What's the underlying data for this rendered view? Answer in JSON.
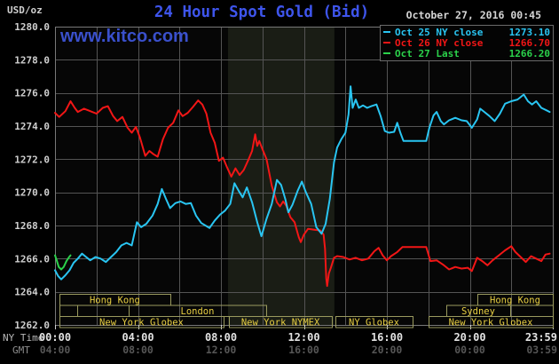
{
  "header": {
    "unit_label": "USD/oz",
    "title": "24 Hour Spot Gold (Bid)",
    "datetime": "October 27, 2016 00:45",
    "watermark": "www.kitco.com"
  },
  "legend": {
    "items": [
      {
        "label": "Oct 25 NY close",
        "value": "1273.10",
        "color": "#29c5f2"
      },
      {
        "label": "Oct 26 NY close",
        "value": "1266.70",
        "color": "#f21616"
      },
      {
        "label": "Oct 27 Last",
        "value": "1266.20",
        "color": "#2bd24b"
      }
    ]
  },
  "axes": {
    "ny_time_label": "NY Time",
    "gmt_label": "GMT",
    "y_tick_labels": [
      "1280.0",
      "1278.0",
      "1276.0",
      "1274.0",
      "1272.0",
      "1270.0",
      "1268.0",
      "1266.0",
      "1264.0",
      "1262.0"
    ],
    "x_tick_hours": [
      0,
      4,
      8,
      12,
      16,
      20,
      23.983
    ],
    "x_tick_labels_ny": [
      "00:00",
      "04:00",
      "08:00",
      "12:00",
      "16:00",
      "20:00",
      "23:59"
    ],
    "x_tick_labels_gmt": [
      "04:00",
      "08:00",
      "12:00",
      "16:00",
      "20:00",
      "00:00",
      "03:59"
    ]
  },
  "sessions": {
    "box_border_color": "#9a9a5e",
    "text_color": "#e8cf42",
    "rows": [
      {
        "boxes": [
          {
            "from": 0.21,
            "to": 5.56,
            "label": "Hong Kong"
          },
          {
            "from": 20.36,
            "to": 24,
            "label": "Hong Kong"
          }
        ]
      },
      {
        "boxes": [
          {
            "from": 0.21,
            "to": 1.07,
            "label": ""
          },
          {
            "from": 1.07,
            "to": 3.55,
            "label": ""
          },
          {
            "from": 3.55,
            "to": 10.18,
            "label": "London"
          },
          {
            "from": 18.86,
            "to": 21.95,
            "label": "Sydney"
          },
          {
            "from": 21.95,
            "to": 24,
            "label": ""
          }
        ]
      },
      {
        "boxes": [
          {
            "from": 0.21,
            "to": 8.13,
            "label": "New York Globex"
          },
          {
            "from": 8.39,
            "to": 13.35,
            "label": "New York NYMEX"
          },
          {
            "from": 13.52,
            "to": 17.24,
            "label": "NY Globex"
          },
          {
            "from": 18.01,
            "to": 24,
            "label": "New York Globex"
          }
        ]
      }
    ]
  },
  "chart_data": {
    "type": "line",
    "title": "24 Hour Spot Gold (Bid)",
    "xlabel": "NY Time (hours, 00:00 - 23:59)",
    "ylabel": "USD/oz",
    "xlim": [
      0,
      24
    ],
    "ylim": [
      1262,
      1280
    ],
    "y_tick_step": 2,
    "x_grid_step_hours": 2,
    "grid": true,
    "plot_bg_color": "#060606",
    "grid_color": "#545454",
    "border_color": "#787878",
    "nymex_band_hours": [
      8.34,
      13.47
    ],
    "nymex_band_color": "#1a1d15",
    "legend_position": "top-right",
    "series": [
      {
        "name": "Oct 26 NY close 1266.70",
        "color": "#f21616",
        "points": [
          [
            0.0,
            1274.8
          ],
          [
            0.2,
            1274.55
          ],
          [
            0.5,
            1274.9
          ],
          [
            0.75,
            1275.5
          ],
          [
            0.95,
            1275.1
          ],
          [
            1.1,
            1274.85
          ],
          [
            1.4,
            1275.05
          ],
          [
            1.7,
            1274.9
          ],
          [
            2.0,
            1274.75
          ],
          [
            2.3,
            1275.1
          ],
          [
            2.55,
            1275.2
          ],
          [
            2.8,
            1274.6
          ],
          [
            3.0,
            1274.3
          ],
          [
            3.25,
            1274.55
          ],
          [
            3.5,
            1273.9
          ],
          [
            3.7,
            1273.6
          ],
          [
            3.9,
            1273.95
          ],
          [
            4.1,
            1273.3
          ],
          [
            4.35,
            1272.2
          ],
          [
            4.55,
            1272.5
          ],
          [
            4.75,
            1272.3
          ],
          [
            4.95,
            1272.15
          ],
          [
            5.2,
            1273.2
          ],
          [
            5.45,
            1273.9
          ],
          [
            5.7,
            1274.2
          ],
          [
            5.95,
            1274.95
          ],
          [
            6.15,
            1274.6
          ],
          [
            6.4,
            1274.8
          ],
          [
            6.65,
            1275.15
          ],
          [
            6.9,
            1275.55
          ],
          [
            7.1,
            1275.3
          ],
          [
            7.3,
            1274.75
          ],
          [
            7.5,
            1273.6
          ],
          [
            7.7,
            1273.0
          ],
          [
            7.9,
            1271.9
          ],
          [
            8.1,
            1272.1
          ],
          [
            8.3,
            1271.5
          ],
          [
            8.5,
            1270.95
          ],
          [
            8.7,
            1271.45
          ],
          [
            8.9,
            1271.05
          ],
          [
            9.1,
            1271.35
          ],
          [
            9.3,
            1271.9
          ],
          [
            9.5,
            1272.5
          ],
          [
            9.65,
            1273.5
          ],
          [
            9.75,
            1272.8
          ],
          [
            9.85,
            1273.1
          ],
          [
            10.0,
            1272.6
          ],
          [
            10.2,
            1272.0
          ],
          [
            10.45,
            1270.4
          ],
          [
            10.7,
            1269.4
          ],
          [
            10.85,
            1269.15
          ],
          [
            11.0,
            1269.45
          ],
          [
            11.15,
            1269.2
          ],
          [
            11.35,
            1268.5
          ],
          [
            11.55,
            1268.2
          ],
          [
            11.75,
            1267.3
          ],
          [
            11.85,
            1267.0
          ],
          [
            12.0,
            1267.45
          ],
          [
            12.2,
            1267.8
          ],
          [
            12.5,
            1267.75
          ],
          [
            12.8,
            1267.7
          ],
          [
            12.95,
            1267.45
          ],
          [
            13.02,
            1266.6
          ],
          [
            13.08,
            1264.8
          ],
          [
            13.12,
            1264.35
          ],
          [
            13.2,
            1265.1
          ],
          [
            13.3,
            1265.45
          ],
          [
            13.45,
            1266.05
          ],
          [
            13.6,
            1266.15
          ],
          [
            13.9,
            1266.1
          ],
          [
            14.2,
            1265.95
          ],
          [
            14.5,
            1266.05
          ],
          [
            14.8,
            1265.9
          ],
          [
            15.1,
            1266.0
          ],
          [
            15.4,
            1266.45
          ],
          [
            15.6,
            1266.65
          ],
          [
            15.8,
            1266.2
          ],
          [
            16.0,
            1265.9
          ],
          [
            16.2,
            1266.15
          ],
          [
            16.5,
            1266.4
          ],
          [
            16.75,
            1266.7
          ],
          [
            17.9,
            1266.7
          ],
          [
            18.1,
            1265.85
          ],
          [
            18.4,
            1265.9
          ],
          [
            18.7,
            1265.65
          ],
          [
            19.0,
            1265.35
          ],
          [
            19.3,
            1265.5
          ],
          [
            19.6,
            1265.4
          ],
          [
            19.9,
            1265.45
          ],
          [
            20.1,
            1265.25
          ],
          [
            20.35,
            1266.05
          ],
          [
            20.6,
            1265.85
          ],
          [
            20.85,
            1265.6
          ],
          [
            21.1,
            1265.9
          ],
          [
            21.4,
            1266.2
          ],
          [
            21.7,
            1266.5
          ],
          [
            22.0,
            1266.75
          ],
          [
            22.2,
            1266.4
          ],
          [
            22.45,
            1266.1
          ],
          [
            22.7,
            1265.8
          ],
          [
            22.95,
            1266.15
          ],
          [
            23.2,
            1266.0
          ],
          [
            23.45,
            1265.85
          ],
          [
            23.65,
            1266.25
          ],
          [
            23.85,
            1266.3
          ]
        ]
      },
      {
        "name": "Oct 25 NY close 1273.10",
        "color": "#29c5f2",
        "points": [
          [
            0.0,
            1265.3
          ],
          [
            0.15,
            1264.95
          ],
          [
            0.3,
            1264.75
          ],
          [
            0.5,
            1265.0
          ],
          [
            0.7,
            1265.3
          ],
          [
            0.9,
            1265.75
          ],
          [
            1.1,
            1266.0
          ],
          [
            1.3,
            1266.3
          ],
          [
            1.5,
            1266.1
          ],
          [
            1.7,
            1265.9
          ],
          [
            1.95,
            1266.1
          ],
          [
            2.2,
            1266.0
          ],
          [
            2.45,
            1265.8
          ],
          [
            2.7,
            1266.1
          ],
          [
            2.95,
            1266.4
          ],
          [
            3.2,
            1266.8
          ],
          [
            3.45,
            1266.95
          ],
          [
            3.7,
            1266.8
          ],
          [
            3.95,
            1268.2
          ],
          [
            4.15,
            1267.9
          ],
          [
            4.4,
            1268.1
          ],
          [
            4.7,
            1268.6
          ],
          [
            4.95,
            1269.3
          ],
          [
            5.15,
            1270.2
          ],
          [
            5.35,
            1269.6
          ],
          [
            5.55,
            1269.05
          ],
          [
            5.8,
            1269.35
          ],
          [
            6.05,
            1269.45
          ],
          [
            6.3,
            1269.3
          ],
          [
            6.55,
            1269.35
          ],
          [
            6.8,
            1268.6
          ],
          [
            7.05,
            1268.15
          ],
          [
            7.25,
            1268.0
          ],
          [
            7.45,
            1267.85
          ],
          [
            7.7,
            1268.3
          ],
          [
            7.95,
            1268.65
          ],
          [
            8.2,
            1268.9
          ],
          [
            8.45,
            1269.3
          ],
          [
            8.65,
            1270.55
          ],
          [
            8.85,
            1270.1
          ],
          [
            9.05,
            1269.7
          ],
          [
            9.25,
            1270.3
          ],
          [
            9.5,
            1269.4
          ],
          [
            9.75,
            1268.2
          ],
          [
            9.95,
            1267.35
          ],
          [
            10.2,
            1268.4
          ],
          [
            10.45,
            1269.3
          ],
          [
            10.7,
            1270.75
          ],
          [
            10.9,
            1270.45
          ],
          [
            11.1,
            1269.6
          ],
          [
            11.25,
            1268.8
          ],
          [
            11.45,
            1269.25
          ],
          [
            11.7,
            1270.1
          ],
          [
            11.9,
            1270.65
          ],
          [
            12.1,
            1270.0
          ],
          [
            12.35,
            1269.3
          ],
          [
            12.6,
            1267.9
          ],
          [
            12.85,
            1267.5
          ],
          [
            13.05,
            1268.1
          ],
          [
            13.25,
            1269.6
          ],
          [
            13.45,
            1271.8
          ],
          [
            13.6,
            1272.7
          ],
          [
            13.8,
            1273.2
          ],
          [
            14.0,
            1273.6
          ],
          [
            14.15,
            1274.7
          ],
          [
            14.25,
            1276.4
          ],
          [
            14.35,
            1275.1
          ],
          [
            14.5,
            1275.6
          ],
          [
            14.65,
            1275.1
          ],
          [
            14.85,
            1275.25
          ],
          [
            15.05,
            1275.1
          ],
          [
            15.25,
            1275.2
          ],
          [
            15.5,
            1275.3
          ],
          [
            15.7,
            1274.6
          ],
          [
            15.9,
            1273.7
          ],
          [
            16.1,
            1273.6
          ],
          [
            16.35,
            1273.65
          ],
          [
            16.5,
            1274.2
          ],
          [
            16.65,
            1273.6
          ],
          [
            16.8,
            1273.1
          ],
          [
            17.9,
            1273.1
          ],
          [
            18.05,
            1273.9
          ],
          [
            18.25,
            1274.65
          ],
          [
            18.4,
            1274.85
          ],
          [
            18.6,
            1274.3
          ],
          [
            18.75,
            1274.1
          ],
          [
            19.0,
            1274.35
          ],
          [
            19.3,
            1274.5
          ],
          [
            19.6,
            1274.35
          ],
          [
            19.85,
            1274.3
          ],
          [
            20.1,
            1273.9
          ],
          [
            20.35,
            1274.4
          ],
          [
            20.5,
            1275.05
          ],
          [
            20.7,
            1274.85
          ],
          [
            20.95,
            1274.6
          ],
          [
            21.2,
            1274.3
          ],
          [
            21.45,
            1274.75
          ],
          [
            21.7,
            1275.35
          ],
          [
            22.0,
            1275.5
          ],
          [
            22.3,
            1275.6
          ],
          [
            22.6,
            1275.9
          ],
          [
            22.8,
            1275.5
          ],
          [
            23.0,
            1275.3
          ],
          [
            23.2,
            1275.5
          ],
          [
            23.45,
            1275.1
          ],
          [
            23.7,
            1274.95
          ],
          [
            23.85,
            1274.85
          ]
        ]
      },
      {
        "name": "Oct 27 Last 1266.20",
        "color": "#2bd24b",
        "points": [
          [
            0.0,
            1266.2
          ],
          [
            0.08,
            1265.9
          ],
          [
            0.18,
            1265.5
          ],
          [
            0.3,
            1265.35
          ],
          [
            0.42,
            1265.5
          ],
          [
            0.55,
            1265.85
          ],
          [
            0.68,
            1266.1
          ],
          [
            0.75,
            1266.2
          ]
        ]
      }
    ]
  }
}
